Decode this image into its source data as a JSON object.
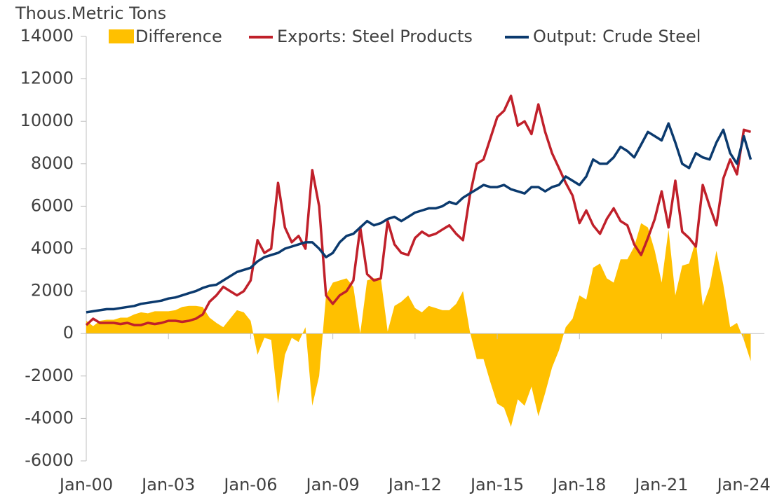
{
  "chart_data": {
    "type": "line",
    "y_label": "Thous.Metric Tons",
    "x": [
      "2000-01",
      "2000-04",
      "2000-07",
      "2000-10",
      "2001-01",
      "2001-04",
      "2001-07",
      "2001-10",
      "2002-01",
      "2002-04",
      "2002-07",
      "2002-10",
      "2003-01",
      "2003-04",
      "2003-07",
      "2003-10",
      "2004-01",
      "2004-04",
      "2004-07",
      "2004-10",
      "2005-01",
      "2005-04",
      "2005-07",
      "2005-10",
      "2006-01",
      "2006-04",
      "2006-07",
      "2006-10",
      "2007-01",
      "2007-04",
      "2007-07",
      "2007-10",
      "2008-01",
      "2008-04",
      "2008-07",
      "2008-10",
      "2009-01",
      "2009-04",
      "2009-07",
      "2009-10",
      "2010-01",
      "2010-04",
      "2010-07",
      "2010-10",
      "2011-01",
      "2011-04",
      "2011-07",
      "2011-10",
      "2012-01",
      "2012-04",
      "2012-07",
      "2012-10",
      "2013-01",
      "2013-04",
      "2013-07",
      "2013-10",
      "2014-01",
      "2014-04",
      "2014-07",
      "2014-10",
      "2015-01",
      "2015-04",
      "2015-07",
      "2015-10",
      "2016-01",
      "2016-04",
      "2016-07",
      "2016-10",
      "2017-01",
      "2017-04",
      "2017-07",
      "2017-10",
      "2018-01",
      "2018-04",
      "2018-07",
      "2018-10",
      "2019-01",
      "2019-04",
      "2019-07",
      "2019-10",
      "2020-01",
      "2020-04",
      "2020-07",
      "2020-10",
      "2021-01",
      "2021-04",
      "2021-07",
      "2021-10",
      "2022-01",
      "2022-04",
      "2022-07",
      "2022-10",
      "2023-01",
      "2023-04",
      "2023-07",
      "2023-10",
      "2024-01",
      "2024-04"
    ],
    "series": [
      {
        "name": "Difference",
        "kind": "area",
        "color": "#FFC000",
        "values": [
          600,
          350,
          600,
          650,
          650,
          750,
          750,
          900,
          1000,
          950,
          1050,
          1050,
          1050,
          1100,
          1250,
          1300,
          1300,
          1250,
          750,
          500,
          300,
          700,
          1100,
          1000,
          600,
          -1000,
          -200,
          -300,
          -3300,
          -1000,
          -200,
          -400,
          300,
          -3400,
          -2000,
          1800,
          2400,
          2500,
          2600,
          2200,
          0,
          2500,
          2600,
          2600,
          100,
          1300,
          1500,
          1800,
          1200,
          1000,
          1300,
          1200,
          1100,
          1100,
          1400,
          2000,
          100,
          -1200,
          -1200,
          -2300,
          -3300,
          -3500,
          -4400,
          -3100,
          -3400,
          -2500,
          -3900,
          -2800,
          -1600,
          -800,
          300,
          700,
          1800,
          1600,
          3100,
          3300,
          2600,
          2400,
          3500,
          3500,
          4100,
          5200,
          5000,
          3900,
          2400,
          4900,
          1800,
          3200,
          3300,
          4400,
          1300,
          2200,
          3900,
          2300,
          300,
          500,
          -300,
          -1300
        ]
      },
      {
        "name": "Exports: Steel Products",
        "kind": "line",
        "color": "#C0202A",
        "values": [
          400,
          700,
          500,
          500,
          500,
          450,
          500,
          400,
          400,
          500,
          450,
          500,
          600,
          600,
          550,
          600,
          700,
          900,
          1500,
          1800,
          2200,
          2000,
          1800,
          2000,
          2500,
          4400,
          3800,
          4000,
          7100,
          5000,
          4300,
          4600,
          4000,
          7700,
          6000,
          1800,
          1400,
          1800,
          2000,
          2500,
          5000,
          2800,
          2500,
          2600,
          5300,
          4200,
          3800,
          3700,
          4500,
          4800,
          4600,
          4700,
          4900,
          5100,
          4700,
          4400,
          6500,
          8000,
          8200,
          9200,
          10200,
          10500,
          11200,
          9800,
          10000,
          9400,
          10800,
          9500,
          8500,
          7800,
          7100,
          6500,
          5200,
          5800,
          5100,
          4700,
          5400,
          5900,
          5300,
          5100,
          4200,
          3700,
          4500,
          5400,
          6700,
          5000,
          7200,
          4800,
          4500,
          4100,
          7000,
          6000,
          5100,
          7300,
          8200,
          7500,
          9600,
          9500
        ]
      },
      {
        "name": "Output: Crude Steel",
        "kind": "line",
        "color": "#0B3A6E",
        "values": [
          1000,
          1050,
          1100,
          1150,
          1150,
          1200,
          1250,
          1300,
          1400,
          1450,
          1500,
          1550,
          1650,
          1700,
          1800,
          1900,
          2000,
          2150,
          2250,
          2300,
          2500,
          2700,
          2900,
          3000,
          3100,
          3400,
          3600,
          3700,
          3800,
          4000,
          4100,
          4200,
          4300,
          4300,
          4000,
          3600,
          3800,
          4300,
          4600,
          4700,
          5000,
          5300,
          5100,
          5200,
          5400,
          5500,
          5300,
          5500,
          5700,
          5800,
          5900,
          5900,
          6000,
          6200,
          6100,
          6400,
          6600,
          6800,
          7000,
          6900,
          6900,
          7000,
          6800,
          6700,
          6600,
          6900,
          6900,
          6700,
          6900,
          7000,
          7400,
          7200,
          7000,
          7400,
          8200,
          8000,
          8000,
          8300,
          8800,
          8600,
          8300,
          8900,
          9500,
          9300,
          9100,
          9900,
          9000,
          8000,
          7800,
          8500,
          8300,
          8200,
          9000,
          9600,
          8500,
          8000,
          9300,
          8200
        ]
      }
    ],
    "xlim": [
      "2000-01",
      "2024-10"
    ],
    "xticks": [
      {
        "value": "2000-01",
        "label": "Jan-00"
      },
      {
        "value": "2003-01",
        "label": "Jan-03"
      },
      {
        "value": "2006-01",
        "label": "Jan-06"
      },
      {
        "value": "2009-01",
        "label": "Jan-09"
      },
      {
        "value": "2012-01",
        "label": "Jan-12"
      },
      {
        "value": "2015-01",
        "label": "Jan-15"
      },
      {
        "value": "2018-01",
        "label": "Jan-18"
      },
      {
        "value": "2021-01",
        "label": "Jan-21"
      },
      {
        "value": "2024-01",
        "label": "Jan-24"
      }
    ],
    "ylim": [
      -6000,
      14000
    ],
    "yticks": [
      -6000,
      -4000,
      -2000,
      0,
      2000,
      4000,
      6000,
      8000,
      10000,
      12000,
      14000
    ],
    "legend": "top"
  }
}
